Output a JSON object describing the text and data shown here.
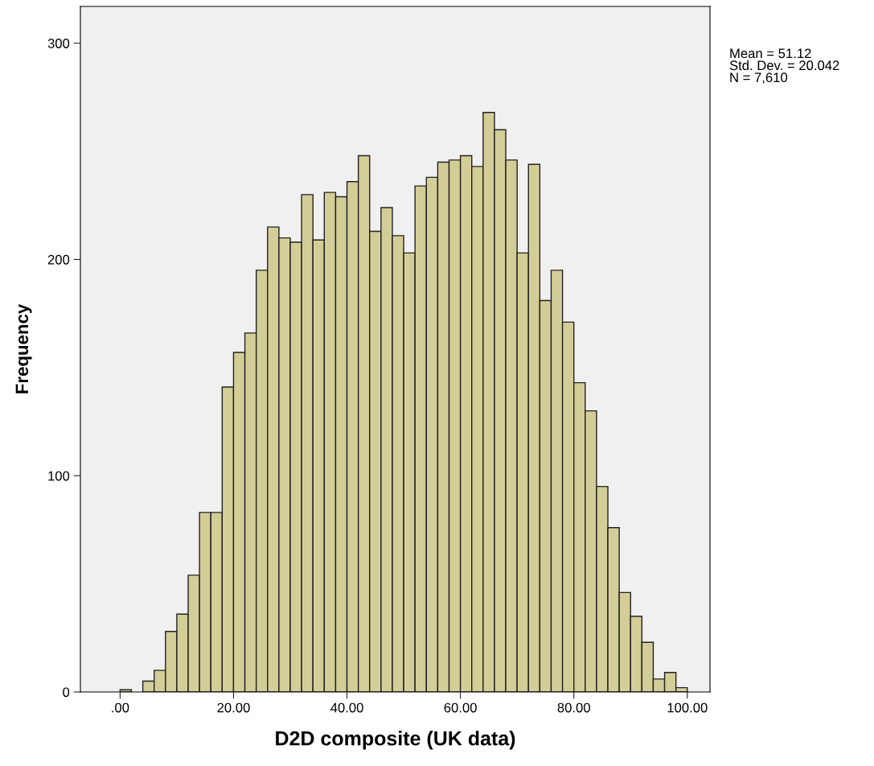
{
  "chart_data": {
    "type": "histogram",
    "xlabel": "D2D composite (UK data)",
    "ylabel": "Frequency",
    "bins": [
      0,
      2,
      4,
      6,
      8,
      10,
      12,
      14,
      16,
      18,
      20,
      22,
      24,
      26,
      28,
      30,
      32,
      34,
      36,
      38,
      40,
      42,
      44,
      46,
      48,
      50,
      52,
      54,
      56,
      58,
      60,
      62,
      64,
      66,
      68,
      70,
      72,
      74,
      76,
      78,
      80,
      82,
      84,
      86,
      88,
      90,
      92,
      94,
      96,
      98,
      100
    ],
    "values": [
      1,
      0,
      5,
      10,
      28,
      36,
      54,
      83,
      83,
      141,
      157,
      166,
      195,
      215,
      210,
      208,
      230,
      209,
      231,
      229,
      236,
      248,
      213,
      224,
      211,
      203,
      234,
      238,
      245,
      246,
      248,
      243,
      268,
      260,
      246,
      203,
      244,
      181,
      195,
      171,
      143,
      130,
      95,
      76,
      46,
      35,
      23,
      6,
      9,
      2
    ],
    "color": "#d3ce97",
    "xlim": [
      -7,
      104
    ],
    "ylim": [
      0,
      317
    ],
    "xticks": [
      {
        "value": 0,
        "label": ".00"
      },
      {
        "value": 20,
        "label": "20.00"
      },
      {
        "value": 40,
        "label": "40.00"
      },
      {
        "value": 60,
        "label": "60.00"
      },
      {
        "value": 80,
        "label": "80.00"
      },
      {
        "value": 100,
        "label": "100.00"
      }
    ],
    "yticks": [
      0,
      100,
      200,
      300
    ],
    "annotations": [
      "Mean = 51.12\nStd. Dev. = 20.042\nN = 7,610"
    ],
    "grid": false
  }
}
